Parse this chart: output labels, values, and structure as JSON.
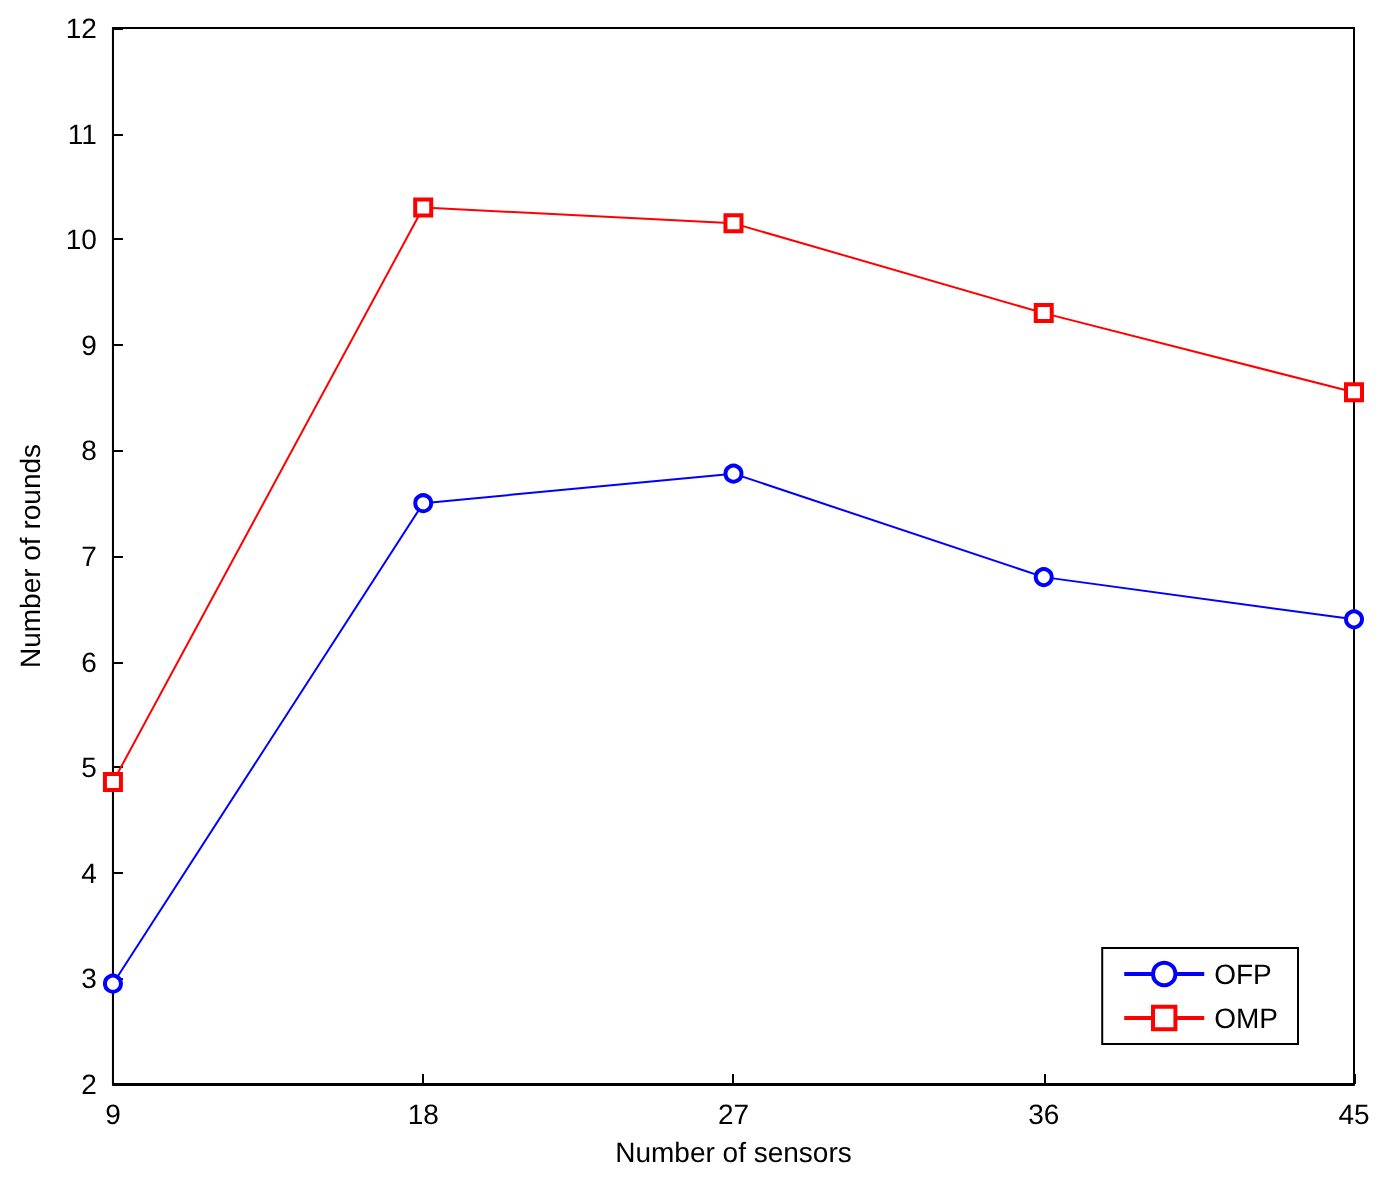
{
  "chart_data": {
    "type": "line",
    "xlabel": "Number of sensors",
    "ylabel": "Number of rounds",
    "x": [
      9,
      18,
      27,
      36,
      45
    ],
    "series": [
      {
        "name": "OFP",
        "color": "#0000ff",
        "marker": "circle",
        "values": [
          2.95,
          7.5,
          7.78,
          6.8,
          6.4
        ]
      },
      {
        "name": "OMP",
        "color": "#ff0000",
        "marker": "square",
        "values": [
          4.86,
          10.3,
          10.15,
          9.3,
          8.55
        ]
      }
    ],
    "xlim": [
      9,
      45
    ],
    "xticks": [
      9,
      18,
      27,
      36,
      45
    ],
    "ylim": [
      2,
      12
    ],
    "yticks": [
      2,
      3,
      4,
      5,
      6,
      7,
      8,
      9,
      10,
      11,
      12
    ],
    "legend": "bottom right",
    "grid": false,
    "line_style": "solid"
  }
}
